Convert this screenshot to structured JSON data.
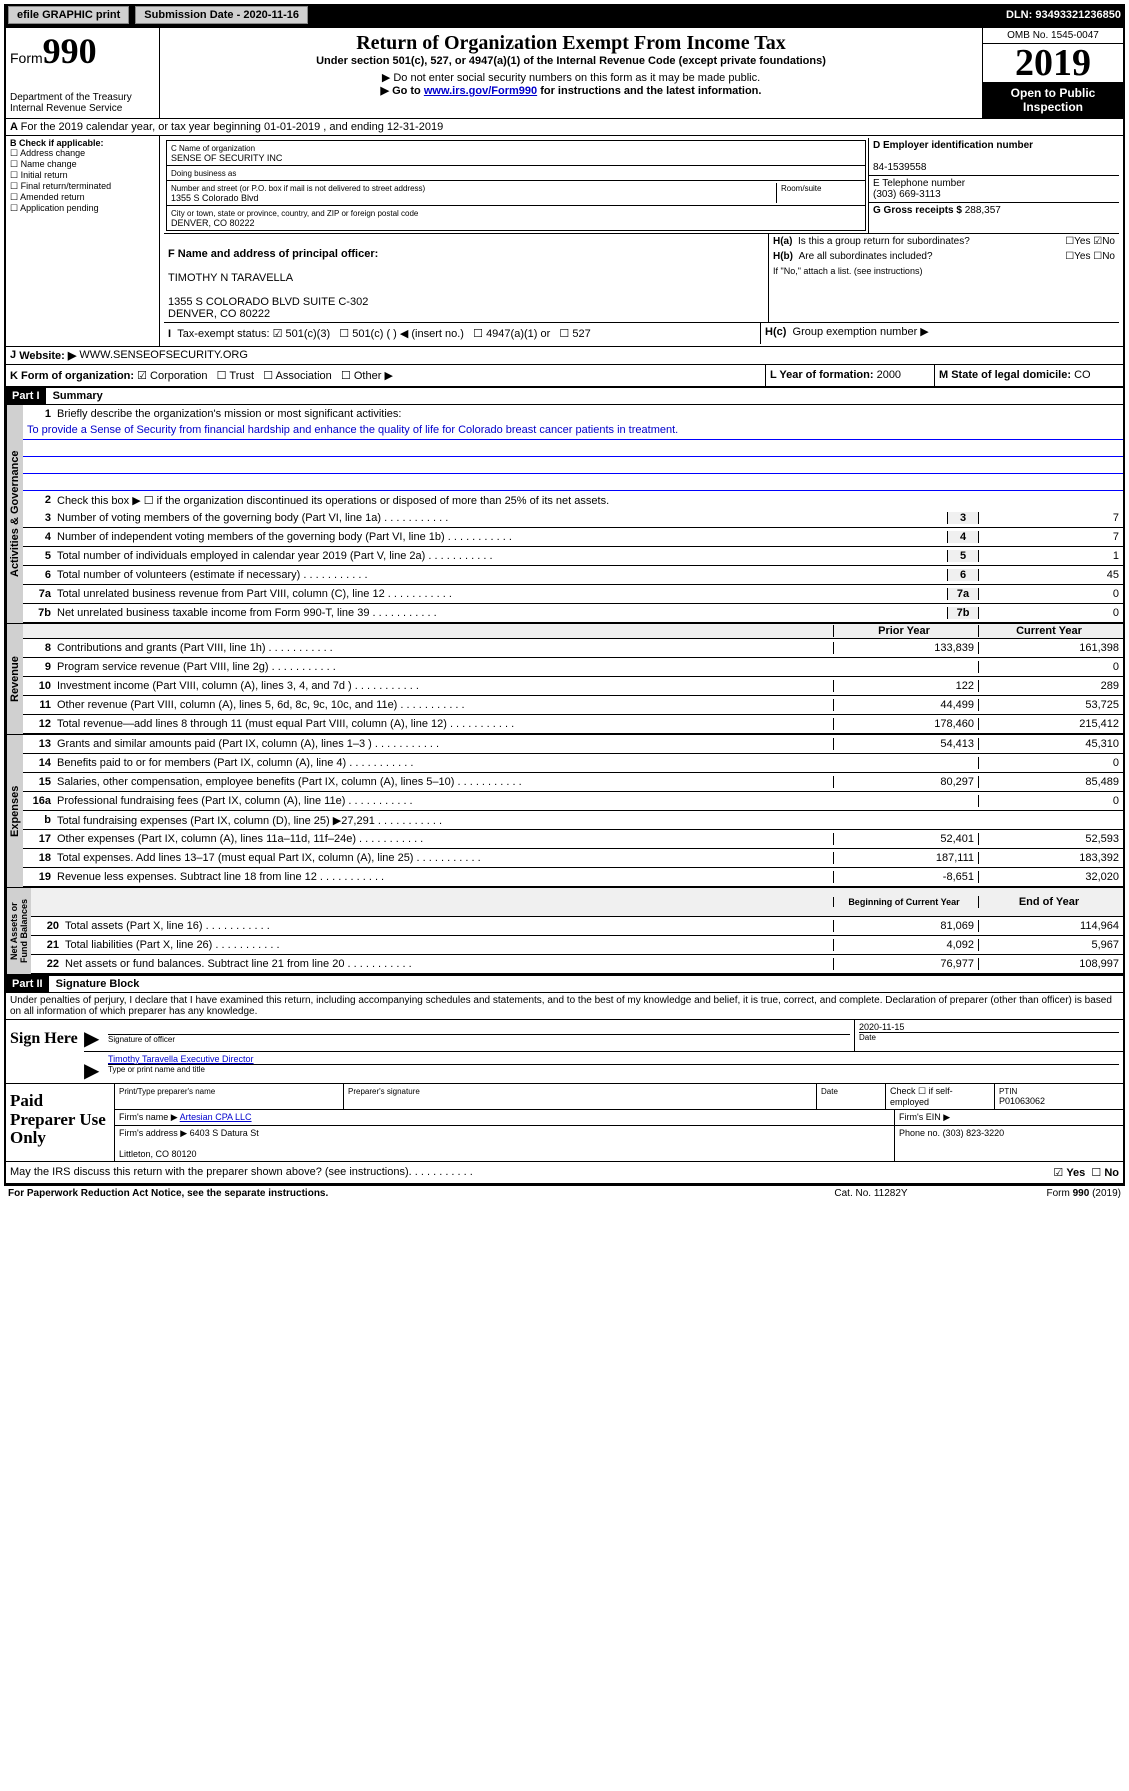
{
  "top": {
    "efile": "efile GRAPHIC print",
    "submission_label": "Submission Date - ",
    "submission_date": "2020-11-16",
    "dln_label": "DLN: ",
    "dln": "93493321236850"
  },
  "header": {
    "form_label": "Form",
    "form_num": "990",
    "dept": "Department of the Treasury\nInternal Revenue Service",
    "title": "Return of Organization Exempt From Income Tax",
    "sub1": "Under section 501(c), 527, or 4947(a)(1) of the Internal Revenue Code (except private foundations)",
    "sub2": "▶ Do not enter social security numbers on this form as it may be made public.",
    "sub3_pre": "▶ Go to ",
    "sub3_link": "www.irs.gov/Form990",
    "sub3_post": " for instructions and the latest information.",
    "omb": "OMB No. 1545-0047",
    "year": "2019",
    "inspection": "Open to Public Inspection"
  },
  "A": {
    "text": "For the 2019 calendar year, or tax year beginning 01-01-2019    , and ending 12-31-2019"
  },
  "B": {
    "label": "B Check if applicable:",
    "opts": [
      "Address change",
      "Name change",
      "Initial return",
      "Final return/terminated",
      "Amended return",
      "Application pending"
    ]
  },
  "C": {
    "name_lbl": "C Name of organization",
    "name": "SENSE OF SECURITY INC",
    "dba_lbl": "Doing business as",
    "dba": "",
    "addr_lbl": "Number and street (or P.O. box if mail is not delivered to street address)",
    "addr": "1355 S Colorado Blvd",
    "room_lbl": "Room/suite",
    "city_lbl": "City or town, state or province, country, and ZIP or foreign postal code",
    "city": "DENVER, CO  80222"
  },
  "D": {
    "lbl": "D Employer identification number",
    "val": "84-1539558"
  },
  "E": {
    "lbl": "E Telephone number",
    "val": "(303) 669-3113"
  },
  "F": {
    "lbl": "F  Name and address of principal officer:",
    "name": "TIMOTHY N TARAVELLA",
    "addr": "1355 S COLORADO BLVD SUITE C-302\nDENVER, CO  80222"
  },
  "G": {
    "lbl": "G Gross receipts $",
    "val": "288,357"
  },
  "H": {
    "a": "Is this a group return for subordinates?",
    "b": "Are all subordinates included?",
    "b_note": "If \"No,\" attach a list. (see instructions)",
    "c": "Group exemption number ▶"
  },
  "I": {
    "lbl": "Tax-exempt status:",
    "opts": [
      "501(c)(3)",
      "501(c) (  ) ◀ (insert no.)",
      "4947(a)(1) or",
      "527"
    ]
  },
  "J": {
    "lbl": "Website: ▶",
    "val": "WWW.SENSEOFSECURITY.ORG"
  },
  "K": {
    "lbl": "K Form of organization:",
    "opts": [
      "Corporation",
      "Trust",
      "Association",
      "Other ▶"
    ]
  },
  "L": {
    "lbl": "L Year of formation:",
    "val": "2000"
  },
  "M": {
    "lbl": "M State of legal domicile:",
    "val": "CO"
  },
  "part1": {
    "header": "Part I",
    "title": "Summary",
    "line1": "Briefly describe the organization's mission or most significant activities:",
    "mission": "To provide a Sense of Security from financial hardship and enhance the quality of life for Colorado breast cancer patients in treatment.",
    "line2": "Check this box ▶ ☐ if the organization discontinued its operations or disposed of more than 25% of its net assets.",
    "line3": "Number of voting members of the governing body (Part VI, line 1a)",
    "line4": "Number of independent voting members of the governing body (Part VI, line 1b)",
    "line5": "Total number of individuals employed in calendar year 2019 (Part V, line 2a)",
    "line6": "Total number of volunteers (estimate if necessary)",
    "line7a": "Total unrelated business revenue from Part VIII, column (C), line 12",
    "line7b": "Net unrelated business taxable income from Form 990-T, line 39",
    "vals": {
      "3": "7",
      "4": "7",
      "5": "1",
      "6": "45",
      "7a": "0",
      "7b": "0"
    },
    "prior_year": "Prior Year",
    "current_year": "Current Year",
    "revenue": [
      {
        "n": "8",
        "t": "Contributions and grants (Part VIII, line 1h)",
        "p": "133,839",
        "c": "161,398"
      },
      {
        "n": "9",
        "t": "Program service revenue (Part VIII, line 2g)",
        "p": "",
        "c": "0"
      },
      {
        "n": "10",
        "t": "Investment income (Part VIII, column (A), lines 3, 4, and 7d )",
        "p": "122",
        "c": "289"
      },
      {
        "n": "11",
        "t": "Other revenue (Part VIII, column (A), lines 5, 6d, 8c, 9c, 10c, and 11e)",
        "p": "44,499",
        "c": "53,725"
      },
      {
        "n": "12",
        "t": "Total revenue—add lines 8 through 11 (must equal Part VIII, column (A), line 12)",
        "p": "178,460",
        "c": "215,412"
      }
    ],
    "expenses": [
      {
        "n": "13",
        "t": "Grants and similar amounts paid (Part IX, column (A), lines 1–3 )",
        "p": "54,413",
        "c": "45,310"
      },
      {
        "n": "14",
        "t": "Benefits paid to or for members (Part IX, column (A), line 4)",
        "p": "",
        "c": "0"
      },
      {
        "n": "15",
        "t": "Salaries, other compensation, employee benefits (Part IX, column (A), lines 5–10)",
        "p": "80,297",
        "c": "85,489"
      },
      {
        "n": "16a",
        "t": "Professional fundraising fees (Part IX, column (A), line 11e)",
        "p": "",
        "c": "0"
      },
      {
        "n": "b",
        "t": "Total fundraising expenses (Part IX, column (D), line 25) ▶27,291",
        "p": "shade",
        "c": "shade"
      },
      {
        "n": "17",
        "t": "Other expenses (Part IX, column (A), lines 11a–11d, 11f–24e)",
        "p": "52,401",
        "c": "52,593"
      },
      {
        "n": "18",
        "t": "Total expenses. Add lines 13–17 (must equal Part IX, column (A), line 25)",
        "p": "187,111",
        "c": "183,392"
      },
      {
        "n": "19",
        "t": "Revenue less expenses. Subtract line 18 from line 12",
        "p": "-8,651",
        "c": "32,020"
      }
    ],
    "begin_year": "Beginning of Current Year",
    "end_year": "End of Year",
    "netassets": [
      {
        "n": "20",
        "t": "Total assets (Part X, line 16)",
        "p": "81,069",
        "c": "114,964"
      },
      {
        "n": "21",
        "t": "Total liabilities (Part X, line 26)",
        "p": "4,092",
        "c": "5,967"
      },
      {
        "n": "22",
        "t": "Net assets or fund balances. Subtract line 21 from line 20",
        "p": "76,977",
        "c": "108,997"
      }
    ]
  },
  "part2": {
    "header": "Part II",
    "title": "Signature Block",
    "decl": "Under penalties of perjury, I declare that I have examined this return, including accompanying schedules and statements, and to the best of my knowledge and belief, it is true, correct, and complete. Declaration of preparer (other than officer) is based on all information of which preparer has any knowledge.",
    "sign_here": "Sign Here",
    "sig_date": "2020-11-15",
    "sig_officer_lbl": "Signature of officer",
    "date_lbl": "Date",
    "officer_name": "Timothy Taravella Executive Director",
    "type_name_lbl": "Type or print name and title",
    "paid": "Paid Preparer Use Only",
    "prep_name_lbl": "Print/Type preparer's name",
    "prep_sig_lbl": "Preparer's signature",
    "prep_date_lbl": "Date",
    "self_emp": "Check ☐ if self-employed",
    "ptin_lbl": "PTIN",
    "ptin": "P01063062",
    "firm_name_lbl": "Firm's name    ▶",
    "firm_name": "Artesian CPA LLC",
    "firm_ein_lbl": "Firm's EIN ▶",
    "firm_addr_lbl": "Firm's address ▶",
    "firm_addr": "6403 S Datura St\n\nLittleton, CO  80120",
    "phone_lbl": "Phone no.",
    "phone": "(303) 823-3220",
    "discuss": "May the IRS discuss this return with the preparer shown above? (see instructions)"
  },
  "footer": {
    "paperwork": "For Paperwork Reduction Act Notice, see the separate instructions.",
    "cat": "Cat. No. 11282Y",
    "form": "Form 990 (2019)"
  }
}
